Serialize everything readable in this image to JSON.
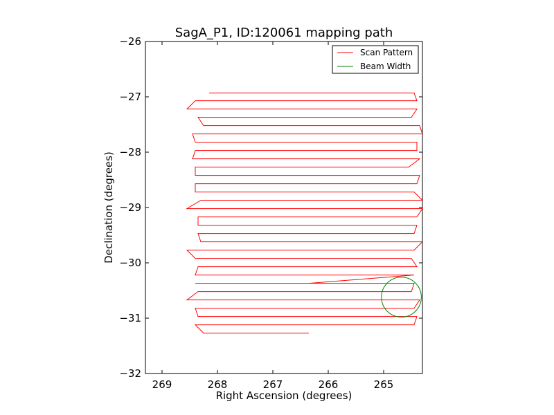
{
  "chart_data": {
    "type": "line",
    "title": "SagA_P1, ID:120061 mapping path",
    "xlabel": "Right Ascension (degrees)",
    "ylabel": "Declination (degrees)",
    "xlim": [
      269.3,
      264.3
    ],
    "ylim": [
      -32,
      -26
    ],
    "xticks": [
      269,
      268,
      267,
      266,
      265
    ],
    "xtick_labels": [
      "269",
      "268",
      "267",
      "266",
      "265"
    ],
    "yticks": [
      -26,
      -27,
      -28,
      -29,
      -30,
      -31,
      -32
    ],
    "ytick_labels": [
      "−26",
      "−27",
      "−28",
      "−29",
      "−30",
      "−31",
      "−32"
    ],
    "grid": false,
    "legend": {
      "position": "upper right"
    },
    "series": [
      {
        "name": "Scan Pattern",
        "color": "#ff0000",
        "ra": [
          268.15,
          264.45,
          264.4,
          268.4,
          268.55,
          264.4,
          264.5,
          268.35,
          268.25,
          264.35,
          264.3,
          268.45,
          268.4,
          264.4,
          264.4,
          268.4,
          268.45,
          264.35,
          264.55,
          268.4,
          268.4,
          264.35,
          264.4,
          268.4,
          268.4,
          264.45,
          264.3,
          268.3,
          268.55,
          264.3,
          264.4,
          268.35,
          268.35,
          264.4,
          264.45,
          268.35,
          268.3,
          264.3,
          264.45,
          268.55,
          268.4,
          264.5,
          264.4,
          268.35,
          268.4,
          264.45,
          266.35,
          268.2
        ],
        "dec": [
          -26.93,
          -26.93,
          -27.07,
          -27.07,
          -27.22,
          -27.22,
          -27.37,
          -27.37,
          -27.52,
          -27.52,
          -27.67,
          -27.67,
          -27.82,
          -27.82,
          -27.97,
          -27.97,
          -28.12,
          -28.12,
          -28.27,
          -28.27,
          -28.42,
          -28.42,
          -28.57,
          -28.57,
          -28.72,
          -28.72,
          -28.87,
          -28.87,
          -29.02,
          -29.02,
          -29.17,
          -29.17,
          -29.32,
          -29.32,
          -29.47,
          -29.47,
          -29.62,
          -29.62,
          -29.77,
          -29.77,
          -29.92,
          -29.92,
          -30.07,
          -30.07,
          -30.22,
          -30.22,
          -30.37,
          -30.37
        ],
        "ra_tail": [
          268.4,
          264.45,
          264.5,
          268.35,
          268.55,
          264.35,
          264.45,
          268.4,
          268.35,
          264.4,
          264.45,
          268.4,
          268.25,
          266.35
        ],
        "dec_tail": [
          -30.37,
          -30.37,
          -30.52,
          -30.52,
          -30.67,
          -30.67,
          -30.82,
          -30.82,
          -30.97,
          -30.97,
          -31.12,
          -31.12,
          -31.27,
          -31.27
        ]
      },
      {
        "name": "Beam Width",
        "color": "#008000",
        "center_ra": 264.68,
        "center_dec": -30.62,
        "radius_deg": 0.36
      }
    ]
  }
}
